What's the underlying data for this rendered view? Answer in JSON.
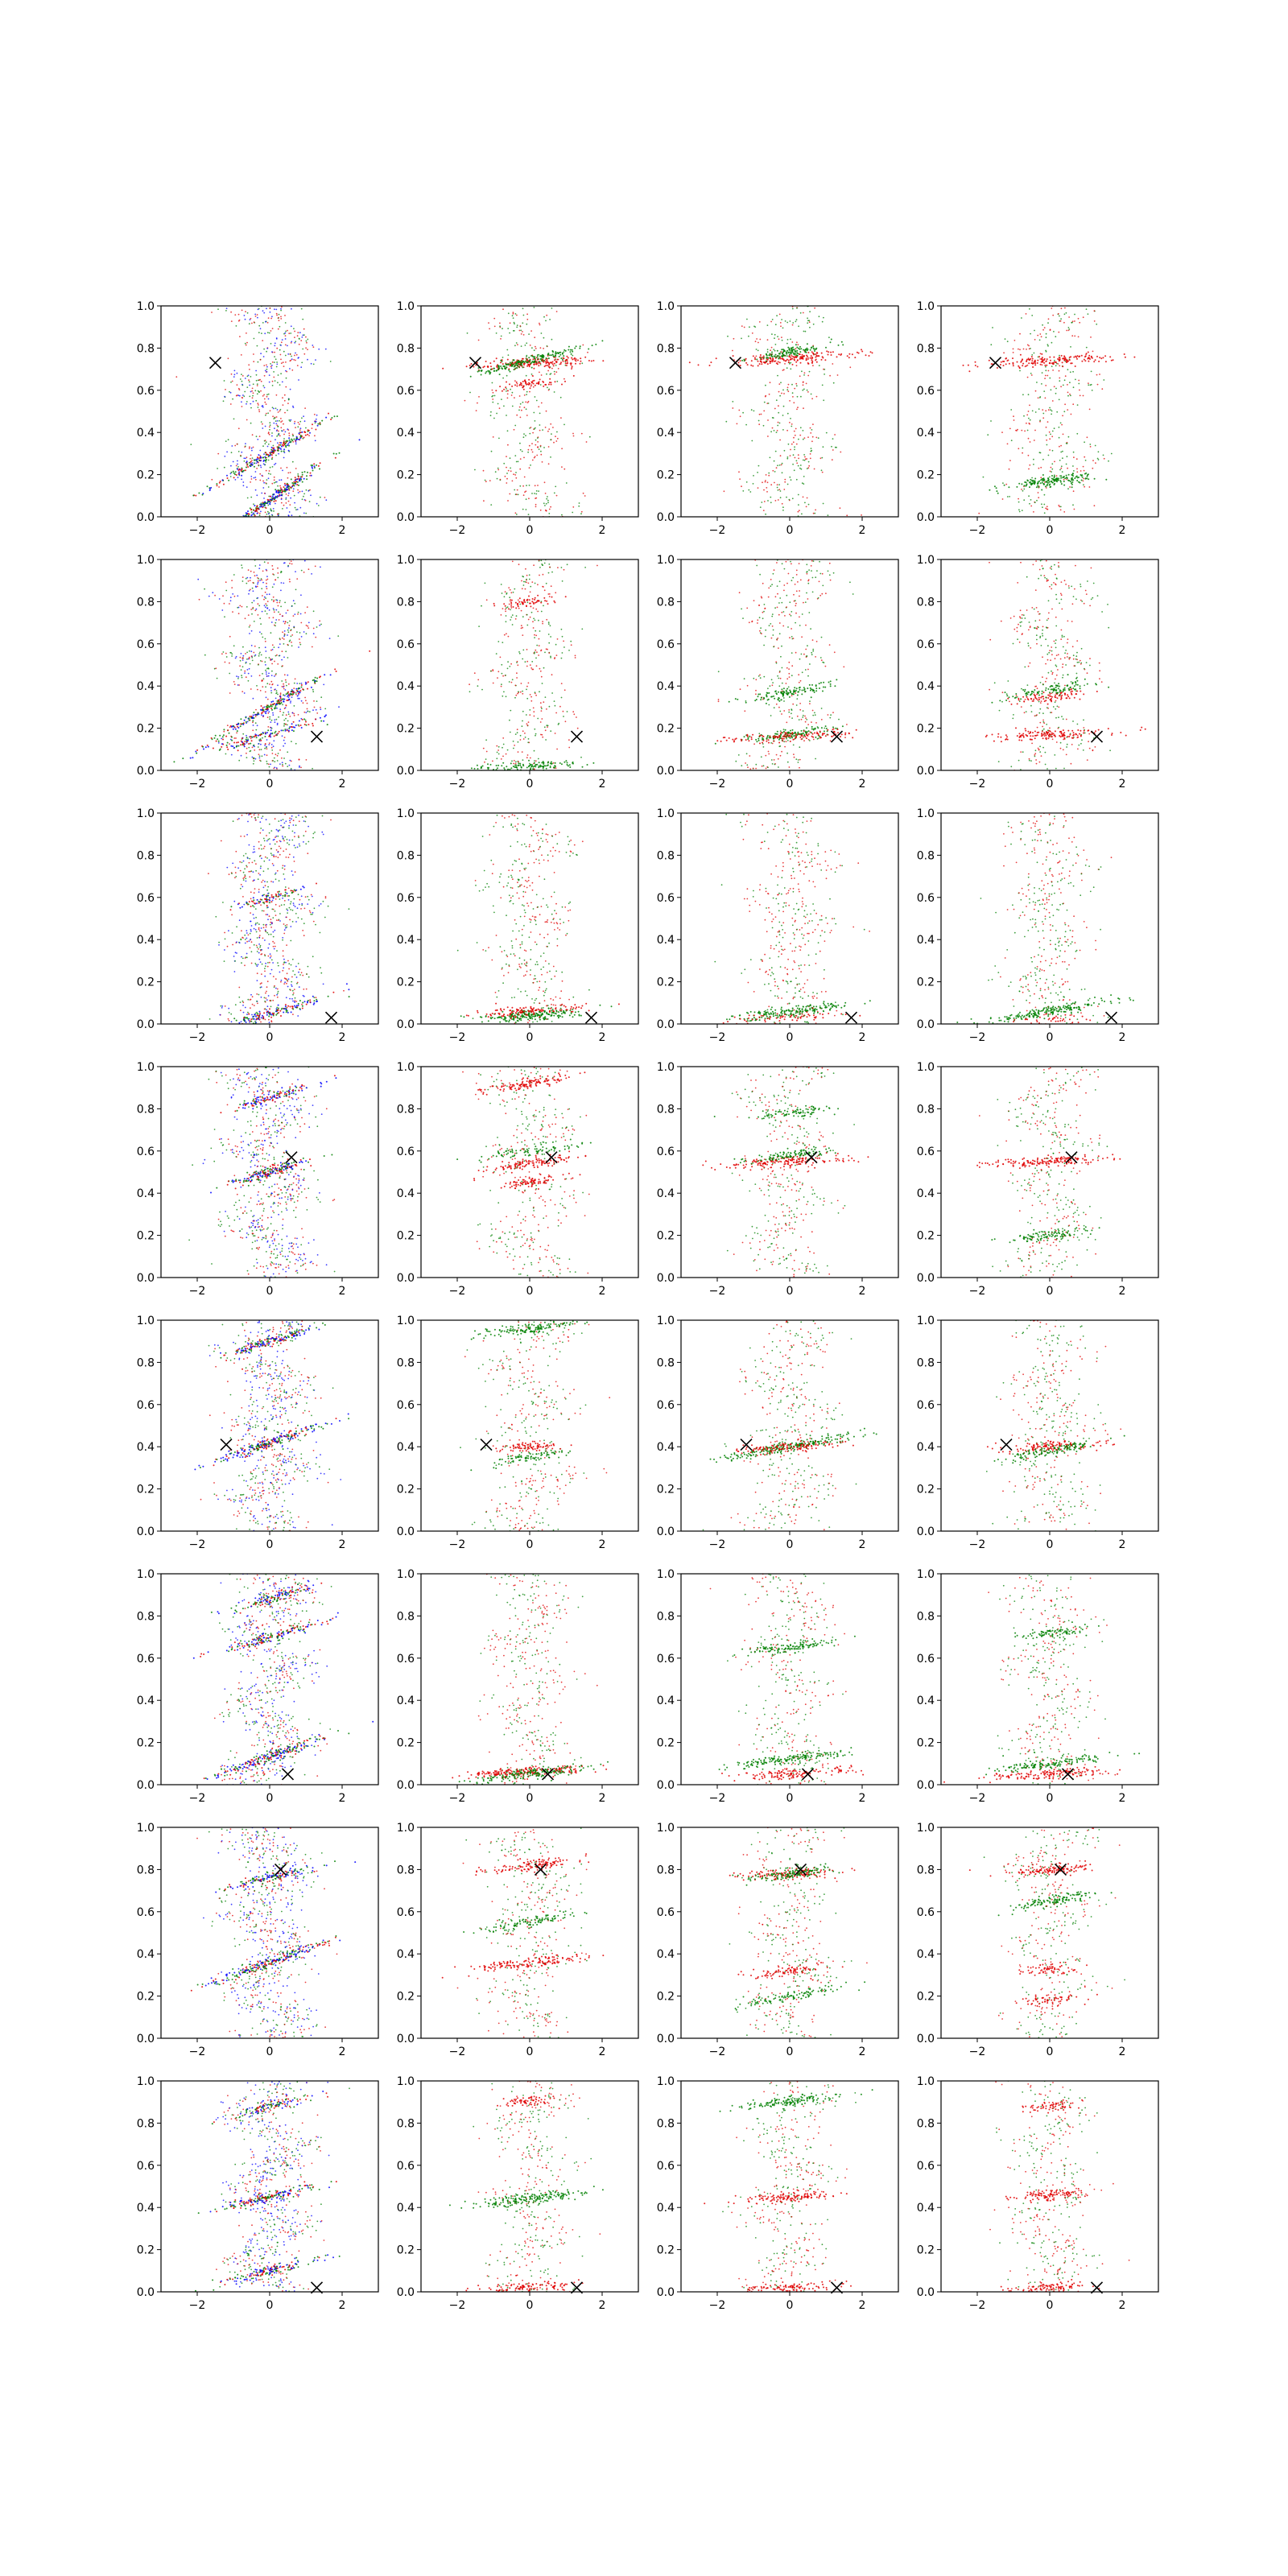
{
  "chart_data": {
    "type": "scatter",
    "layout": {
      "rows": 8,
      "cols": 4
    },
    "xlim": [
      -3,
      3
    ],
    "ylim": [
      0,
      1
    ],
    "xticks": [
      -2,
      0,
      2
    ],
    "yticks": [
      0.0,
      0.2,
      0.4,
      0.6,
      0.8,
      1.0
    ],
    "xtick_labels": [
      "−2",
      "0",
      "2"
    ],
    "ytick_labels": [
      "0.0",
      "0.2",
      "0.4",
      "0.6",
      "0.8",
      "1.0"
    ],
    "grid": false,
    "legend": "none",
    "colors": {
      "red": "#e00000",
      "green": "#008000",
      "blue": "#0000ff",
      "marker": "#000000"
    },
    "panel_series_colors": [
      [
        "red",
        "green",
        "blue"
      ],
      [
        "red",
        "green"
      ],
      [
        "red",
        "green"
      ],
      [
        "red",
        "green"
      ]
    ],
    "rows_data": [
      {
        "marker": [
          -1.5,
          0.73
        ],
        "col0": [
          {
            "y": 0.08,
            "slope": 0.12,
            "sx": 0.8,
            "n": 260
          },
          {
            "y": 0.3,
            "slope": 0.1,
            "sx": 0.9,
            "n": 200
          }
        ],
        "col1": [
          {
            "c": "red",
            "y": 0.73,
            "slope": 0.01,
            "sx": 0.8,
            "n": 180
          },
          {
            "c": "green",
            "y": 0.74,
            "slope": 0.04,
            "sx": 0.7,
            "n": 180
          },
          {
            "c": "red",
            "y": 0.63,
            "slope": 0.02,
            "sx": 0.5,
            "n": 60
          }
        ],
        "col2": [
          {
            "c": "red",
            "y": 0.75,
            "slope": 0.01,
            "sx": 1.0,
            "n": 180
          },
          {
            "c": "green",
            "y": 0.78,
            "slope": 0.03,
            "sx": 0.6,
            "n": 120
          }
        ],
        "col3": [
          {
            "c": "red",
            "y": 0.74,
            "slope": 0.01,
            "sx": 0.9,
            "n": 160
          },
          {
            "c": "green",
            "y": 0.17,
            "slope": 0.02,
            "sx": 0.6,
            "n": 160
          }
        ]
      },
      {
        "marker": [
          1.3,
          0.16
        ],
        "col0": [
          {
            "y": 0.3,
            "slope": 0.1,
            "sx": 0.9,
            "n": 200
          },
          {
            "y": 0.17,
            "slope": 0.05,
            "sx": 0.8,
            "n": 120
          }
        ],
        "col1": [
          {
            "c": "green",
            "y": 0.02,
            "slope": 0.01,
            "sx": 0.8,
            "n": 120
          },
          {
            "c": "red",
            "y": 0.8,
            "slope": 0.02,
            "sx": 0.4,
            "n": 60
          }
        ],
        "col2": [
          {
            "c": "green",
            "y": 0.37,
            "slope": 0.03,
            "sx": 0.6,
            "n": 120
          },
          {
            "c": "green",
            "y": 0.17,
            "slope": 0.02,
            "sx": 0.7,
            "n": 120
          },
          {
            "c": "red",
            "y": 0.16,
            "slope": 0.01,
            "sx": 0.9,
            "n": 120
          }
        ],
        "col3": [
          {
            "c": "red",
            "y": 0.17,
            "slope": 0.01,
            "sx": 0.8,
            "n": 140
          },
          {
            "c": "red",
            "y": 0.35,
            "slope": 0.02,
            "sx": 0.5,
            "n": 80
          },
          {
            "c": "green",
            "y": 0.38,
            "slope": 0.03,
            "sx": 0.6,
            "n": 100
          }
        ]
      },
      {
        "marker": [
          1.7,
          0.03
        ],
        "col0": [
          {
            "y": 0.05,
            "slope": 0.05,
            "sx": 0.9,
            "n": 160
          },
          {
            "y": 0.6,
            "slope": 0.05,
            "sx": 0.5,
            "n": 80
          }
        ],
        "col1": [
          {
            "c": "green",
            "y": 0.04,
            "slope": 0.01,
            "sx": 0.7,
            "n": 200
          },
          {
            "c": "red",
            "y": 0.06,
            "slope": 0.01,
            "sx": 0.8,
            "n": 120
          }
        ],
        "col2": [
          {
            "c": "green",
            "y": 0.06,
            "slope": 0.02,
            "sx": 0.8,
            "n": 180
          },
          {
            "c": "red",
            "y": 0.03,
            "slope": 0.01,
            "sx": 0.8,
            "n": 60
          }
        ],
        "col3": [
          {
            "c": "green",
            "y": 0.06,
            "slope": 0.03,
            "sx": 0.9,
            "n": 200
          },
          {
            "c": "red",
            "y": 0.02,
            "slope": 0.01,
            "sx": 0.6,
            "n": 40
          }
        ]
      },
      {
        "marker": [
          0.6,
          0.57
        ],
        "col0": [
          {
            "y": 0.5,
            "slope": 0.05,
            "sx": 0.6,
            "n": 180
          },
          {
            "y": 0.85,
            "slope": 0.05,
            "sx": 0.6,
            "n": 120
          }
        ],
        "col1": [
          {
            "c": "red",
            "y": 0.92,
            "slope": 0.03,
            "sx": 0.6,
            "n": 120
          },
          {
            "c": "red",
            "y": 0.54,
            "slope": 0.03,
            "sx": 0.6,
            "n": 120
          },
          {
            "c": "red",
            "y": 0.45,
            "slope": 0.02,
            "sx": 0.5,
            "n": 80
          },
          {
            "c": "green",
            "y": 0.6,
            "slope": 0.02,
            "sx": 0.7,
            "n": 80
          }
        ],
        "col2": [
          {
            "c": "red",
            "y": 0.55,
            "slope": 0.01,
            "sx": 0.9,
            "n": 160
          },
          {
            "c": "green",
            "y": 0.58,
            "slope": 0.02,
            "sx": 0.6,
            "n": 100
          },
          {
            "c": "green",
            "y": 0.78,
            "slope": 0.02,
            "sx": 0.6,
            "n": 80
          }
        ],
        "col3": [
          {
            "c": "red",
            "y": 0.55,
            "slope": 0.01,
            "sx": 0.8,
            "n": 160
          },
          {
            "c": "green",
            "y": 0.2,
            "slope": 0.02,
            "sx": 0.6,
            "n": 100
          }
        ]
      },
      {
        "marker": [
          -1.2,
          0.41
        ],
        "col0": [
          {
            "y": 0.42,
            "slope": 0.06,
            "sx": 0.8,
            "n": 220
          },
          {
            "y": 0.9,
            "slope": 0.05,
            "sx": 0.6,
            "n": 160
          }
        ],
        "col1": [
          {
            "c": "green",
            "y": 0.96,
            "slope": 0.02,
            "sx": 0.6,
            "n": 140
          },
          {
            "c": "red",
            "y": 0.4,
            "slope": 0.01,
            "sx": 0.4,
            "n": 80
          },
          {
            "c": "green",
            "y": 0.35,
            "slope": 0.03,
            "sx": 0.6,
            "n": 80
          }
        ],
        "col2": [
          {
            "c": "green",
            "y": 0.4,
            "slope": 0.03,
            "sx": 1.0,
            "n": 220
          },
          {
            "c": "red",
            "y": 0.4,
            "slope": 0.01,
            "sx": 0.7,
            "n": 120
          }
        ],
        "col3": [
          {
            "c": "red",
            "y": 0.4,
            "slope": 0.01,
            "sx": 0.7,
            "n": 120
          },
          {
            "c": "green",
            "y": 0.38,
            "slope": 0.03,
            "sx": 0.6,
            "n": 120
          }
        ]
      },
      {
        "marker": [
          0.5,
          0.05
        ],
        "col0": [
          {
            "y": 0.13,
            "slope": 0.06,
            "sx": 0.8,
            "n": 200
          },
          {
            "y": 0.7,
            "slope": 0.05,
            "sx": 0.8,
            "n": 160
          },
          {
            "y": 0.88,
            "slope": 0.05,
            "sx": 0.6,
            "n": 120
          }
        ],
        "col1": [
          {
            "c": "red",
            "y": 0.06,
            "slope": 0.01,
            "sx": 0.9,
            "n": 180
          },
          {
            "c": "green",
            "y": 0.05,
            "slope": 0.02,
            "sx": 0.8,
            "n": 160
          }
        ],
        "col2": [
          {
            "c": "green",
            "y": 0.65,
            "slope": 0.02,
            "sx": 0.6,
            "n": 120
          },
          {
            "c": "green",
            "y": 0.12,
            "slope": 0.02,
            "sx": 0.8,
            "n": 160
          },
          {
            "c": "red",
            "y": 0.05,
            "slope": 0.01,
            "sx": 0.8,
            "n": 120
          }
        ],
        "col3": [
          {
            "c": "red",
            "y": 0.05,
            "slope": 0.01,
            "sx": 0.9,
            "n": 140
          },
          {
            "c": "green",
            "y": 0.1,
            "slope": 0.02,
            "sx": 0.8,
            "n": 140
          },
          {
            "c": "green",
            "y": 0.72,
            "slope": 0.02,
            "sx": 0.6,
            "n": 80
          }
        ]
      },
      {
        "marker": [
          0.3,
          0.8
        ],
        "col0": [
          {
            "y": 0.36,
            "slope": 0.06,
            "sx": 0.9,
            "n": 220
          },
          {
            "y": 0.76,
            "slope": 0.04,
            "sx": 0.7,
            "n": 140
          }
        ],
        "col1": [
          {
            "c": "red",
            "y": 0.82,
            "slope": 0.02,
            "sx": 0.7,
            "n": 120
          },
          {
            "c": "red",
            "y": 0.36,
            "slope": 0.02,
            "sx": 0.8,
            "n": 140
          },
          {
            "c": "green",
            "y": 0.55,
            "slope": 0.03,
            "sx": 0.6,
            "n": 100
          }
        ],
        "col2": [
          {
            "c": "red",
            "y": 0.78,
            "slope": 0.01,
            "sx": 0.7,
            "n": 120
          },
          {
            "c": "green",
            "y": 0.78,
            "slope": 0.02,
            "sx": 0.6,
            "n": 120
          },
          {
            "c": "red",
            "y": 0.32,
            "slope": 0.02,
            "sx": 0.5,
            "n": 80
          },
          {
            "c": "green",
            "y": 0.2,
            "slope": 0.03,
            "sx": 0.7,
            "n": 100
          }
        ],
        "col3": [
          {
            "c": "red",
            "y": 0.8,
            "slope": 0.01,
            "sx": 0.6,
            "n": 120
          },
          {
            "c": "green",
            "y": 0.65,
            "slope": 0.03,
            "sx": 0.6,
            "n": 120
          },
          {
            "c": "red",
            "y": 0.33,
            "slope": 0.01,
            "sx": 0.4,
            "n": 60
          },
          {
            "c": "red",
            "y": 0.18,
            "slope": 0.01,
            "sx": 0.4,
            "n": 60
          }
        ]
      },
      {
        "marker": [
          1.3,
          0.02
        ],
        "col0": [
          {
            "y": 0.45,
            "slope": 0.04,
            "sx": 0.8,
            "n": 160
          },
          {
            "y": 0.1,
            "slope": 0.04,
            "sx": 0.7,
            "n": 140
          },
          {
            "y": 0.88,
            "slope": 0.04,
            "sx": 0.6,
            "n": 100
          }
        ],
        "col1": [
          {
            "c": "green",
            "y": 0.44,
            "slope": 0.02,
            "sx": 0.8,
            "n": 180
          },
          {
            "c": "red",
            "y": 0.9,
            "slope": 0.01,
            "sx": 0.4,
            "n": 60
          },
          {
            "c": "red",
            "y": 0.02,
            "slope": 0.01,
            "sx": 0.7,
            "n": 100
          }
        ],
        "col2": [
          {
            "c": "green",
            "y": 0.9,
            "slope": 0.02,
            "sx": 0.7,
            "n": 140
          },
          {
            "c": "red",
            "y": 0.45,
            "slope": 0.01,
            "sx": 0.7,
            "n": 120
          },
          {
            "c": "red",
            "y": 0.02,
            "slope": 0.01,
            "sx": 0.7,
            "n": 100
          }
        ],
        "col3": [
          {
            "c": "red",
            "y": 0.46,
            "slope": 0.01,
            "sx": 0.5,
            "n": 100
          },
          {
            "c": "red",
            "y": 0.88,
            "slope": 0.01,
            "sx": 0.4,
            "n": 60
          },
          {
            "c": "red",
            "y": 0.02,
            "slope": 0.01,
            "sx": 0.6,
            "n": 100
          }
        ]
      }
    ]
  }
}
